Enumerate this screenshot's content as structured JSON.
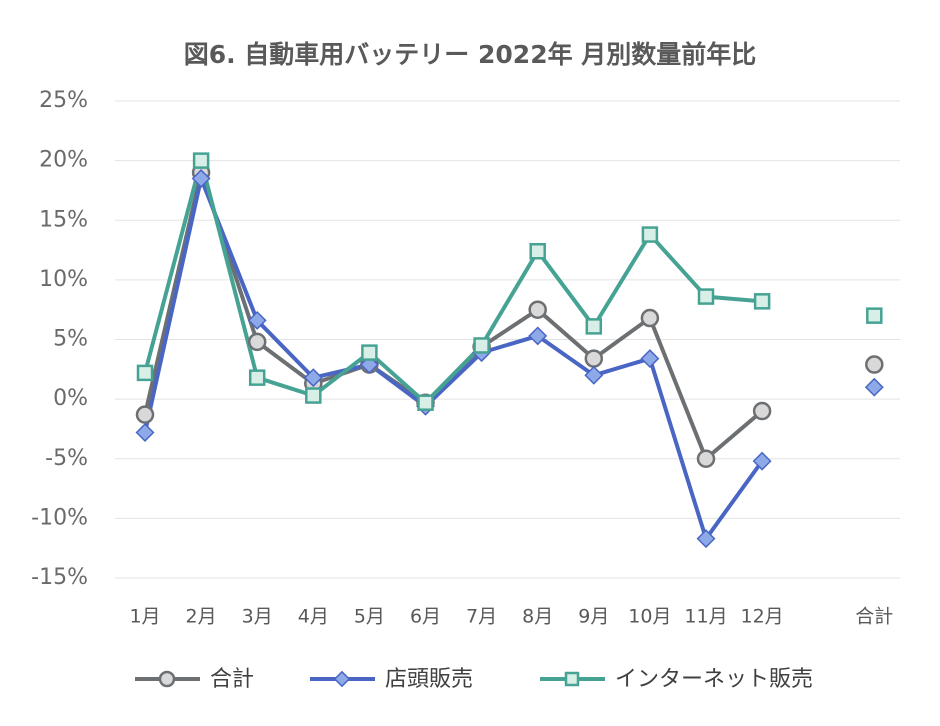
{
  "chart_data": {
    "type": "line",
    "title": "図6. 自動車用バッテリー 2022年 月別数量前年比",
    "categories": [
      "1月",
      "2月",
      "3月",
      "4月",
      "5月",
      "6月",
      "7月",
      "8月",
      "9月",
      "10月",
      "11月",
      "12月",
      null,
      "合計"
    ],
    "series": [
      {
        "name": "合計",
        "color": "#6d7073",
        "marker": "circle",
        "marker_fill": "#d9d9d9",
        "values": [
          -1.3,
          19,
          4.8,
          1.3,
          2.9,
          -0.3,
          4.4,
          7.5,
          3.4,
          6.8,
          -5.0,
          -1.0,
          null,
          2.9
        ]
      },
      {
        "name": "店頭販売",
        "color": "#4a66c4",
        "marker": "diamond",
        "marker_fill": "#8ea9e8",
        "values": [
          -2.8,
          18.5,
          6.6,
          1.8,
          2.9,
          -0.6,
          3.9,
          5.3,
          2.0,
          3.4,
          -11.7,
          -5.2,
          null,
          1.0
        ]
      },
      {
        "name": "インターネット販売",
        "color": "#46a394",
        "marker": "square",
        "marker_fill": "#d8efe8",
        "values": [
          2.2,
          20,
          1.8,
          0.3,
          3.9,
          -0.3,
          4.5,
          12.4,
          6.1,
          13.8,
          8.6,
          8.2,
          null,
          7.0
        ]
      }
    ],
    "ylim": [
      -15,
      25
    ],
    "yticks": [
      {
        "value": -15,
        "label": "-15%"
      },
      {
        "value": -10,
        "label": "-10%"
      },
      {
        "value": -5,
        "label": "-5%"
      },
      {
        "value": 0,
        "label": "0%"
      },
      {
        "value": 5,
        "label": "5%"
      },
      {
        "value": 10,
        "label": "10%"
      },
      {
        "value": 15,
        "label": "15%"
      },
      {
        "value": 20,
        "label": "20%"
      },
      {
        "value": 25,
        "label": "25%"
      }
    ],
    "grid": true,
    "legend": "bottom"
  }
}
